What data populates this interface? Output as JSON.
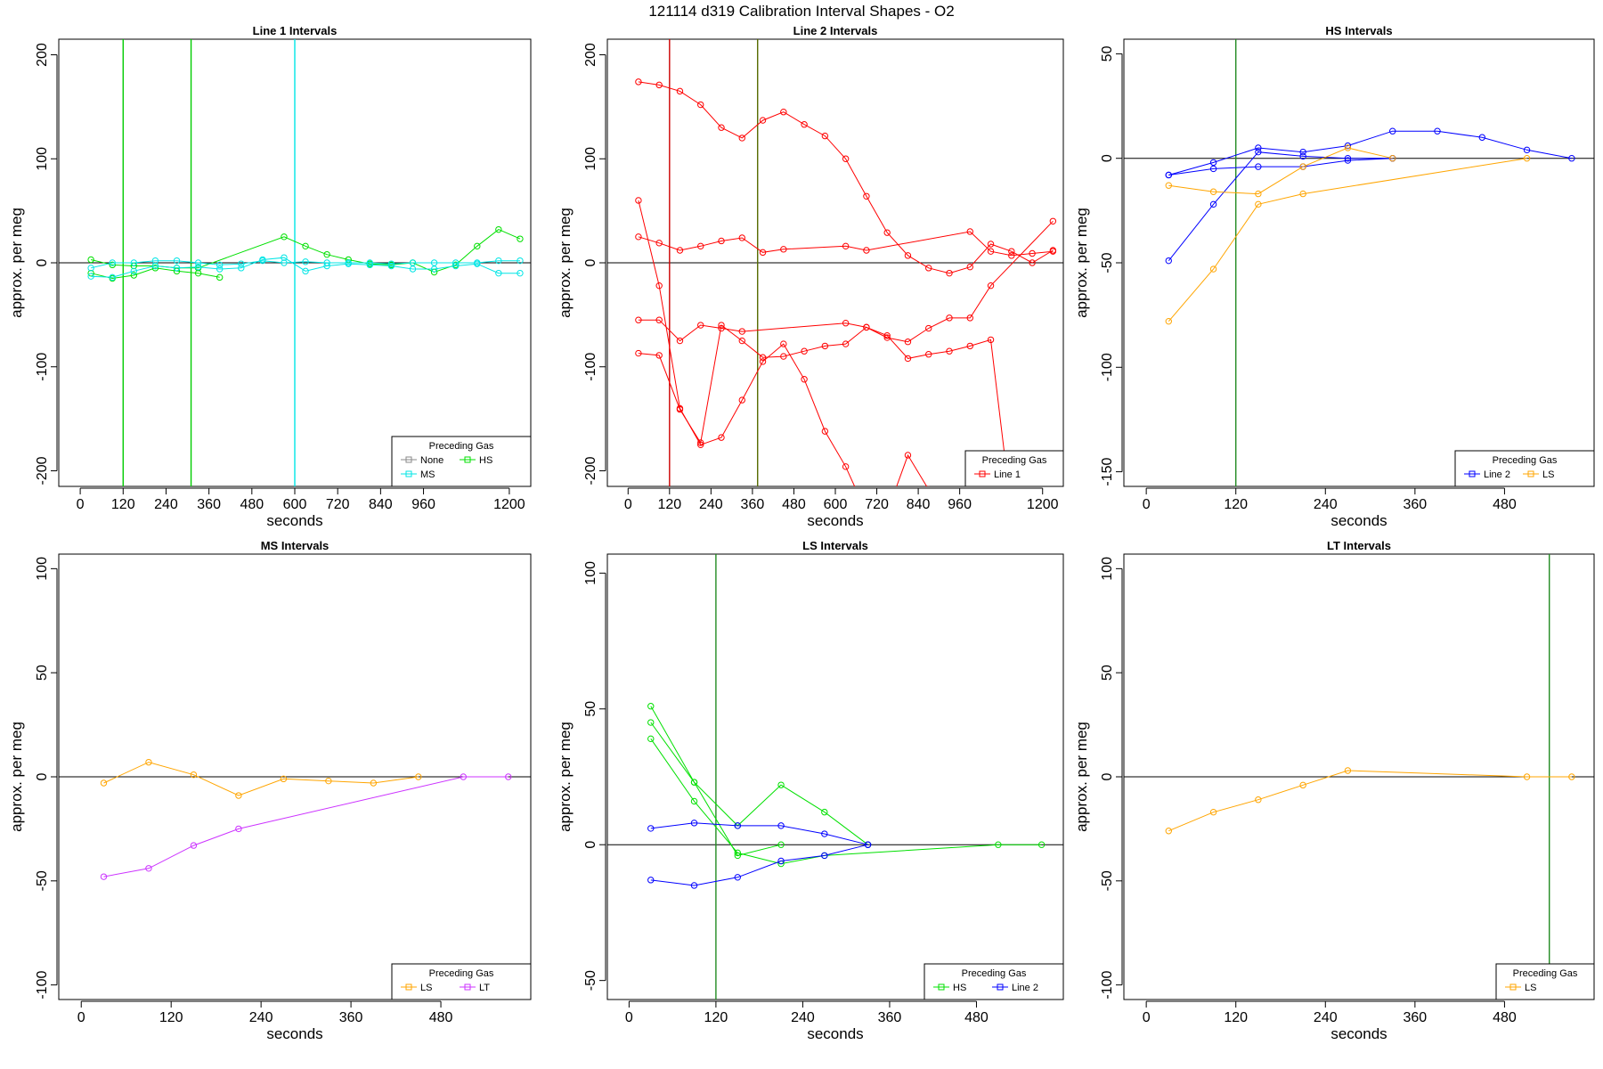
{
  "title": "121114   d319   Calibration Interval Shapes - O2",
  "chart_data": [
    {
      "type": "line",
      "title": "Line 1 Intervals",
      "xlabel": "seconds",
      "ylabel": "approx. per meg",
      "xlim": [
        -60,
        1260
      ],
      "ylim": [
        -215,
        215
      ],
      "xticks": [
        0,
        120,
        240,
        360,
        480,
        600,
        720,
        840,
        960,
        1200
      ],
      "yticks": [
        -200,
        -100,
        0,
        100,
        200
      ],
      "hline": 0,
      "vlines": [
        {
          "x": 120,
          "color": "#00cc00"
        },
        {
          "x": 310,
          "color": "#00cc00"
        },
        {
          "x": 600,
          "color": "#00e5e5"
        }
      ],
      "legend": {
        "title": "Preceding Gas",
        "position": "bottom-right",
        "items": [
          {
            "label": "None",
            "color": "#888888"
          },
          {
            "label": "HS",
            "color": "#00e000"
          },
          {
            "label": "MS",
            "color": "#00e5e5"
          }
        ]
      },
      "series": [
        {
          "name": "HS",
          "color": "#00e000",
          "x": [
            30,
            90,
            150,
            210,
            270,
            330,
            390
          ],
          "y": [
            -10,
            -15,
            -12,
            -5,
            -8,
            -10,
            -14
          ]
        },
        {
          "name": "HS",
          "color": "#00e000",
          "x": [
            30,
            90,
            150,
            210,
            270,
            330,
            570,
            630,
            690,
            750,
            810,
            870,
            930,
            990,
            1050,
            1110,
            1170,
            1230
          ],
          "y": [
            3,
            -2,
            -3,
            -3,
            -5,
            -5,
            25,
            16,
            8,
            3,
            -1,
            -2,
            0,
            -9,
            -2,
            16,
            32,
            23
          ]
        },
        {
          "name": "MS",
          "color": "#00e5e5",
          "x": [
            30,
            90,
            150,
            210,
            270,
            330,
            390,
            450,
            510,
            570,
            630,
            690,
            750,
            810,
            870,
            930,
            990,
            1050,
            1110,
            1170,
            1230
          ],
          "y": [
            -13,
            -14,
            -8,
            -3,
            -5,
            -4,
            -6,
            -5,
            3,
            5,
            -8,
            -3,
            -1,
            -2,
            -3,
            -6,
            -6,
            -3,
            -1,
            -10,
            -10
          ]
        },
        {
          "name": "MS",
          "color": "#00e5e5",
          "x": [
            30,
            90,
            150,
            210,
            270,
            330,
            390,
            450,
            510,
            570,
            630,
            690,
            750,
            810,
            870,
            930,
            990,
            1050,
            1110,
            1170,
            1230
          ],
          "y": [
            -5,
            0,
            0,
            2,
            2,
            0,
            -2,
            -1,
            2,
            0,
            1,
            0,
            0,
            0,
            -1,
            0,
            0,
            0,
            0,
            2,
            2
          ]
        }
      ]
    },
    {
      "type": "line",
      "title": "Line 2 Intervals",
      "xlabel": "seconds",
      "ylabel": "approx. per meg",
      "xlim": [
        -60,
        1260
      ],
      "ylim": [
        -215,
        215
      ],
      "xticks": [
        0,
        120,
        240,
        360,
        480,
        600,
        720,
        840,
        960,
        1200
      ],
      "yticks": [
        -200,
        -100,
        0,
        100,
        200
      ],
      "hline": 0,
      "vlines": [
        {
          "x": 120,
          "color": "#cc0000"
        },
        {
          "x": 375,
          "color": "#556b00"
        }
      ],
      "legend": {
        "title": "Preceding Gas",
        "position": "bottom-right",
        "items": [
          {
            "label": "Line 1",
            "color": "#ff0000"
          }
        ]
      },
      "series": [
        {
          "name": "Line 1",
          "color": "#ff0000",
          "x": [
            30,
            90,
            150,
            210,
            270,
            330,
            390,
            450,
            510,
            570,
            630,
            690,
            750,
            810,
            870,
            930,
            990,
            1050,
            1110,
            1170,
            1230
          ],
          "y": [
            174,
            171,
            165,
            152,
            130,
            120,
            137,
            145,
            133,
            122,
            100,
            64,
            29,
            7,
            -5,
            -10,
            -4,
            18,
            11,
            0,
            12
          ]
        },
        {
          "name": "Line 1",
          "color": "#ff0000",
          "x": [
            30,
            90,
            150,
            210,
            270,
            330,
            390,
            450,
            630,
            690,
            990,
            1050,
            1110,
            1170,
            1230
          ],
          "y": [
            25,
            19,
            12,
            16,
            21,
            24,
            10,
            13,
            16,
            12,
            30,
            11,
            7,
            9,
            11
          ]
        },
        {
          "name": "Line 1",
          "color": "#ff0000",
          "x": [
            30,
            90,
            150,
            210,
            270,
            330,
            630,
            690,
            750,
            810,
            870,
            930,
            990,
            1050,
            1230
          ],
          "y": [
            -55,
            -55,
            -75,
            -60,
            -63,
            -66,
            -58,
            -62,
            -72,
            -76,
            -63,
            -53,
            -53,
            -22,
            40
          ]
        },
        {
          "name": "Line 1",
          "color": "#ff0000",
          "x": [
            30,
            90,
            150,
            210,
            270,
            330,
            390,
            450,
            510,
            570,
            630,
            690,
            750,
            810,
            870,
            930,
            990,
            1050,
            1110,
            1170,
            1230
          ],
          "y": [
            -87,
            -89,
            -141,
            -173,
            -60,
            -75,
            -91,
            -90,
            -85,
            -80,
            -78,
            -62,
            -70,
            -92,
            -88,
            -85,
            -80,
            -74,
            -240,
            -230,
            -210
          ]
        },
        {
          "name": "Line 1",
          "color": "#ff0000",
          "x": [
            30,
            90,
            150,
            210,
            270,
            330,
            390,
            450,
            510,
            570,
            630,
            690,
            750,
            810,
            870,
            930,
            990,
            1050,
            1110,
            1170,
            1230
          ],
          "y": [
            60,
            -22,
            -140,
            -175,
            -168,
            -132,
            -95,
            -78,
            -112,
            -162,
            -196,
            -240,
            -240,
            -185,
            -218,
            -240,
            -240,
            -240,
            -240,
            -240,
            -240
          ]
        }
      ]
    },
    {
      "type": "line",
      "title": "HS Intervals",
      "xlabel": "seconds",
      "ylabel": "approx. per meg",
      "xlim": [
        -30,
        600
      ],
      "ylim": [
        -157,
        57
      ],
      "xticks": [
        0,
        120,
        240,
        360,
        480
      ],
      "yticks": [
        -150,
        -100,
        -50,
        0,
        50
      ],
      "hline": 0,
      "vlines": [
        {
          "x": 120,
          "color": "#228b22"
        }
      ],
      "legend": {
        "title": "Preceding Gas",
        "position": "bottom-right",
        "items": [
          {
            "label": "Line 2",
            "color": "#0000ff"
          },
          {
            "label": "LS",
            "color": "#ffa500"
          }
        ]
      },
      "series": [
        {
          "name": "Line 2",
          "color": "#0000ff",
          "x": [
            30,
            90,
            150,
            210,
            270,
            330,
            390,
            450,
            510,
            570
          ],
          "y": [
            -8,
            -2,
            5,
            3,
            6,
            13,
            13,
            10,
            4,
            0
          ]
        },
        {
          "name": "Line 2",
          "color": "#0000ff",
          "x": [
            30,
            90,
            150,
            210,
            270,
            330
          ],
          "y": [
            -8,
            -5,
            -4,
            -4,
            -1,
            0
          ]
        },
        {
          "name": "Line 2",
          "color": "#0000ff",
          "x": [
            30,
            90,
            150,
            210,
            270,
            330
          ],
          "y": [
            -49,
            -22,
            3,
            1,
            0,
            0
          ]
        },
        {
          "name": "LS",
          "color": "#ffa500",
          "x": [
            30,
            90,
            150,
            210,
            270,
            330
          ],
          "y": [
            -13,
            -16,
            -17,
            -4,
            5,
            0
          ]
        },
        {
          "name": "LS",
          "color": "#ffa500",
          "x": [
            30,
            90,
            150,
            210,
            510
          ],
          "y": [
            -78,
            -53,
            -22,
            -17,
            0
          ]
        }
      ]
    },
    {
      "type": "line",
      "title": "MS Intervals",
      "xlabel": "seconds",
      "ylabel": "approx. per meg",
      "xlim": [
        -30,
        600
      ],
      "ylim": [
        -107,
        107
      ],
      "xticks": [
        0,
        120,
        240,
        360,
        480
      ],
      "yticks": [
        -100,
        -50,
        0,
        50,
        100
      ],
      "hline": 0,
      "vlines": [],
      "legend": {
        "title": "Preceding Gas",
        "position": "bottom-right",
        "items": [
          {
            "label": "LS",
            "color": "#ffa500"
          },
          {
            "label": "LT",
            "color": "#cc33ff"
          }
        ]
      },
      "series": [
        {
          "name": "LS",
          "color": "#ffa500",
          "x": [
            30,
            90,
            150,
            210,
            270,
            330,
            390,
            450
          ],
          "y": [
            -3,
            7,
            1,
            -9,
            -1,
            -2,
            -3,
            0
          ]
        },
        {
          "name": "LT",
          "color": "#cc33ff",
          "x": [
            30,
            90,
            150,
            210,
            510,
            570
          ],
          "y": [
            -48,
            -44,
            -33,
            -25,
            0,
            0
          ]
        }
      ]
    },
    {
      "type": "line",
      "title": "LS Intervals",
      "xlabel": "seconds",
      "ylabel": "approx. per meg",
      "xlim": [
        -30,
        600
      ],
      "ylim": [
        -57,
        107
      ],
      "xticks": [
        0,
        120,
        240,
        360,
        480
      ],
      "yticks": [
        -50,
        0,
        50,
        100
      ],
      "hline": 0,
      "vlines": [
        {
          "x": 120,
          "color": "#228b22"
        }
      ],
      "legend": {
        "title": "Preceding Gas",
        "position": "bottom-right",
        "items": [
          {
            "label": "HS",
            "color": "#00e000"
          },
          {
            "label": "Line 2",
            "color": "#0000ff"
          }
        ]
      },
      "series": [
        {
          "name": "HS",
          "color": "#00e000",
          "x": [
            30,
            90,
            150,
            210,
            270,
            330
          ],
          "y": [
            51,
            23,
            7,
            22,
            12,
            0
          ]
        },
        {
          "name": "HS",
          "color": "#00e000",
          "x": [
            30,
            90,
            150,
            210
          ],
          "y": [
            45,
            23,
            -4,
            0
          ]
        },
        {
          "name": "HS",
          "color": "#00e000",
          "x": [
            30,
            90,
            150,
            210,
            270,
            510,
            570
          ],
          "y": [
            39,
            16,
            -3,
            -7,
            -4,
            0,
            0
          ]
        },
        {
          "name": "Line 2",
          "color": "#0000ff",
          "x": [
            30,
            90,
            150,
            210,
            270,
            330
          ],
          "y": [
            6,
            8,
            7,
            7,
            4,
            0
          ]
        },
        {
          "name": "Line 2",
          "color": "#0000ff",
          "x": [
            30,
            90,
            150,
            210,
            270,
            330
          ],
          "y": [
            -13,
            -15,
            -12,
            -6,
            -4,
            0
          ]
        }
      ]
    },
    {
      "type": "line",
      "title": "LT Intervals",
      "xlabel": "seconds",
      "ylabel": "approx. per meg",
      "xlim": [
        -30,
        600
      ],
      "ylim": [
        -107,
        107
      ],
      "xticks": [
        0,
        120,
        240,
        360,
        480
      ],
      "yticks": [
        -100,
        -50,
        0,
        50,
        100
      ],
      "hline": 0,
      "vlines": [
        {
          "x": 540,
          "color": "#228b22"
        }
      ],
      "legend": {
        "title": "Preceding Gas",
        "position": "bottom-right",
        "items": [
          {
            "label": "LS",
            "color": "#ffa500"
          }
        ]
      },
      "series": [
        {
          "name": "LS",
          "color": "#ffa500",
          "x": [
            30,
            90,
            150,
            210,
            270,
            510,
            570
          ],
          "y": [
            -26,
            -17,
            -11,
            -4,
            3,
            0,
            0
          ]
        }
      ]
    }
  ]
}
